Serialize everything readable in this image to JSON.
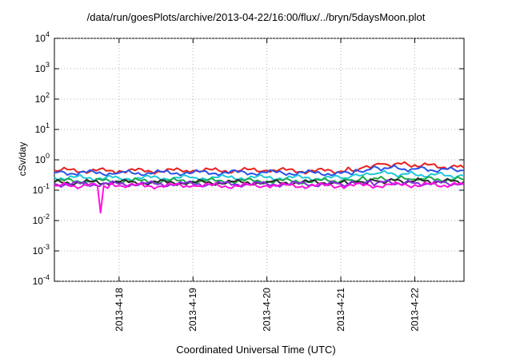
{
  "chart_data": {
    "type": "line",
    "title": "/data/run/goesPlots/archive/2013-04-22/16:00/flux/../bryn/5daysMoon.plot",
    "xlabel": "Coordinated Universal Time (UTC)",
    "ylabel": "cSv/day",
    "x_range": [
      "2013-04-17T03:00",
      "2013-04-22T16:00"
    ],
    "y_scale": "log",
    "ylim": [
      0.0001,
      10000
    ],
    "grid": true,
    "y_ticks": [
      {
        "value": 0.0001,
        "base": "10",
        "exp": "-4"
      },
      {
        "value": 0.001,
        "base": "10",
        "exp": "-3"
      },
      {
        "value": 0.01,
        "base": "10",
        "exp": "-2"
      },
      {
        "value": 0.1,
        "base": "10",
        "exp": "-1"
      },
      {
        "value": 1,
        "base": "10",
        "exp": "0"
      },
      {
        "value": 10,
        "base": "10",
        "exp": "1"
      },
      {
        "value": 100,
        "base": "10",
        "exp": "2"
      },
      {
        "value": 1000,
        "base": "10",
        "exp": "3"
      },
      {
        "value": 10000,
        "base": "10",
        "exp": "4"
      }
    ],
    "x_ticks": [
      {
        "value": "2013-04-18T00:00",
        "label": "2013-4-18"
      },
      {
        "value": "2013-04-19T00:00",
        "label": "2013-4-19"
      },
      {
        "value": "2013-04-20T00:00",
        "label": "2013-4-20"
      },
      {
        "value": "2013-04-21T00:00",
        "label": "2013-4-21"
      },
      {
        "value": "2013-04-22T00:00",
        "label": "2013-4-22"
      }
    ],
    "series": [
      {
        "color": "#e8201c",
        "x": [
          "2013-04-17T03:00",
          "2013-04-18T00:00",
          "2013-04-19T00:00",
          "2013-04-20T00:00",
          "2013-04-21T00:00",
          "2013-04-21T06:00",
          "2013-04-21T12:00",
          "2013-04-22T00:00",
          "2013-04-22T16:00"
        ],
        "y": [
          0.45,
          0.43,
          0.44,
          0.45,
          0.42,
          0.5,
          0.75,
          0.68,
          0.55
        ]
      },
      {
        "color": "#2a52e8",
        "x": [
          "2013-04-17T03:00",
          "2013-04-18T00:00",
          "2013-04-19T00:00",
          "2013-04-20T00:00",
          "2013-04-21T00:00",
          "2013-04-21T06:00",
          "2013-04-21T12:00",
          "2013-04-22T00:00",
          "2013-04-22T16:00"
        ],
        "y": [
          0.38,
          0.37,
          0.38,
          0.38,
          0.36,
          0.42,
          0.55,
          0.5,
          0.45
        ]
      },
      {
        "color": "#20c8d8",
        "x": [
          "2013-04-17T03:00",
          "2013-04-18T00:00",
          "2013-04-19T00:00",
          "2013-04-20T00:00",
          "2013-04-21T00:00",
          "2013-04-21T06:00",
          "2013-04-21T12:00",
          "2013-04-22T00:00",
          "2013-04-22T16:00"
        ],
        "y": [
          0.26,
          0.25,
          0.26,
          0.26,
          0.25,
          0.3,
          0.36,
          0.33,
          0.3
        ]
      },
      {
        "color": "#1ba84a",
        "x": [
          "2013-04-17T03:00",
          "2013-04-18T00:00",
          "2013-04-19T00:00",
          "2013-04-20T00:00",
          "2013-04-21T00:00",
          "2013-04-21T06:00",
          "2013-04-21T12:00",
          "2013-04-22T00:00",
          "2013-04-22T16:00"
        ],
        "y": [
          0.2,
          0.2,
          0.2,
          0.2,
          0.2,
          0.22,
          0.24,
          0.23,
          0.22
        ]
      },
      {
        "color": "#2b2b2b",
        "x": [
          "2013-04-17T03:00",
          "2013-04-18T00:00",
          "2013-04-19T00:00",
          "2013-04-20T00:00",
          "2013-04-21T00:00",
          "2013-04-21T06:00",
          "2013-04-21T12:00",
          "2013-04-22T00:00",
          "2013-04-22T16:00"
        ],
        "y": [
          0.18,
          0.18,
          0.18,
          0.18,
          0.18,
          0.19,
          0.2,
          0.2,
          0.19
        ]
      },
      {
        "color": "#8a2be2",
        "x": [
          "2013-04-17T03:00",
          "2013-04-18T00:00",
          "2013-04-19T00:00",
          "2013-04-20T00:00",
          "2013-04-21T00:00",
          "2013-04-21T06:00",
          "2013-04-21T12:00",
          "2013-04-22T00:00",
          "2013-04-22T16:00"
        ],
        "y": [
          0.16,
          0.16,
          0.16,
          0.16,
          0.16,
          0.17,
          0.18,
          0.17,
          0.17
        ]
      },
      {
        "color": "#ff10e0",
        "x": [
          "2013-04-17T03:00",
          "2013-04-17T17:00",
          "2013-04-17T18:00",
          "2013-04-17T19:00",
          "2013-04-18T00:00",
          "2013-04-19T00:00",
          "2013-04-20T00:00",
          "2013-04-21T00:00",
          "2013-04-22T00:00",
          "2013-04-22T16:00"
        ],
        "y": [
          0.14,
          0.14,
          0.018,
          0.14,
          0.14,
          0.14,
          0.14,
          0.14,
          0.15,
          0.15
        ]
      }
    ]
  }
}
